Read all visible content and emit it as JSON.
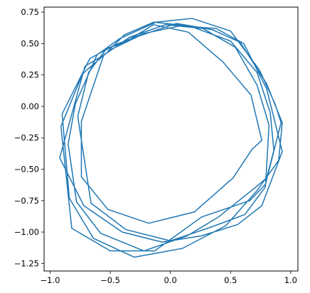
{
  "chart_data": {
    "type": "line",
    "title": "",
    "xlabel": "",
    "ylabel": "",
    "xlim": [
      -1.05,
      1.06
    ],
    "ylim": [
      -1.31,
      0.79
    ],
    "xticks": [
      -1.0,
      -0.5,
      0.0,
      0.5,
      1.0
    ],
    "xtick_labels": [
      "−1.0",
      "−0.5",
      "0.0",
      "0.5",
      "1.0"
    ],
    "yticks": [
      0.75,
      0.5,
      0.25,
      0.0,
      -0.25,
      -0.5,
      -0.75,
      -1.0,
      -1.25
    ],
    "ytick_labels": [
      "0.75",
      "0.50",
      "0.25",
      "0.00",
      "−0.25",
      "−0.50",
      "−0.75",
      "−1.00",
      "−1.25"
    ],
    "grid": false,
    "series": [
      {
        "color": "#1f77b4",
        "x": [
          -0.52,
          -0.38,
          -0.14,
          0.16,
          0.5,
          0.72,
          0.83,
          0.86,
          0.8,
          0.7,
          0.4,
          0.14,
          -0.22,
          -0.58,
          -0.78,
          -0.85,
          -0.79,
          -0.61,
          -0.42,
          -0.12,
          0.18,
          0.5,
          0.74,
          0.87,
          0.92,
          0.79,
          0.66,
          0.26,
          -0.13,
          -0.5,
          -0.82,
          -0.91,
          -0.73,
          -0.5,
          -0.26,
          0.05,
          0.35,
          0.58,
          0.8,
          0.93,
          0.9,
          0.72,
          0.46,
          0.1,
          -0.3,
          -0.64,
          -0.84,
          -0.9,
          -0.67,
          -0.46,
          -0.22,
          0.08,
          0.38,
          0.61,
          0.8,
          0.93,
          0.76,
          0.56,
          0.26,
          -0.07,
          -0.4,
          -0.72,
          -0.92,
          -0.71,
          -0.55,
          -0.34,
          -0.04,
          0.27,
          0.54,
          0.72,
          0.82,
          0.79,
          0.62,
          0.34,
          0.0,
          -0.37,
          -0.66,
          -0.77,
          -0.68,
          -0.53,
          -0.38,
          -0.14,
          0.15,
          0.44,
          0.67,
          0.76,
          0.68,
          0.52,
          0.2,
          -0.18,
          -0.52,
          -0.74,
          -0.74,
          -0.55
        ],
        "y": [
          0.44,
          0.57,
          0.67,
          0.64,
          0.52,
          0.27,
          -0.05,
          -0.35,
          -0.57,
          -0.65,
          -0.88,
          -1.03,
          -1.15,
          -1.01,
          -0.76,
          -0.3,
          0.02,
          0.41,
          0.54,
          0.67,
          0.7,
          0.6,
          0.29,
          0.02,
          -0.13,
          -0.62,
          -0.75,
          -0.88,
          -1.15,
          -1.15,
          -0.97,
          -0.16,
          0.26,
          0.45,
          0.56,
          0.66,
          0.61,
          0.51,
          0.18,
          -0.13,
          -0.43,
          -0.67,
          -0.95,
          -1.13,
          -1.2,
          -1.05,
          -0.73,
          -0.06,
          0.38,
          0.49,
          0.58,
          0.64,
          0.62,
          0.5,
          0.14,
          -0.36,
          -0.79,
          -0.94,
          -1.03,
          -1.08,
          -1.0,
          -0.79,
          -0.41,
          0.32,
          0.41,
          0.55,
          0.65,
          0.62,
          0.47,
          0.17,
          -0.15,
          -0.64,
          -0.86,
          -0.96,
          -1.07,
          -0.98,
          -0.77,
          -0.08,
          0.27,
          0.46,
          0.51,
          0.65,
          0.59,
          0.35,
          0.09,
          -0.27,
          -0.34,
          -0.57,
          -0.84,
          -0.93,
          -0.82,
          -0.56,
          -0.12,
          0.42
        ]
      }
    ]
  }
}
